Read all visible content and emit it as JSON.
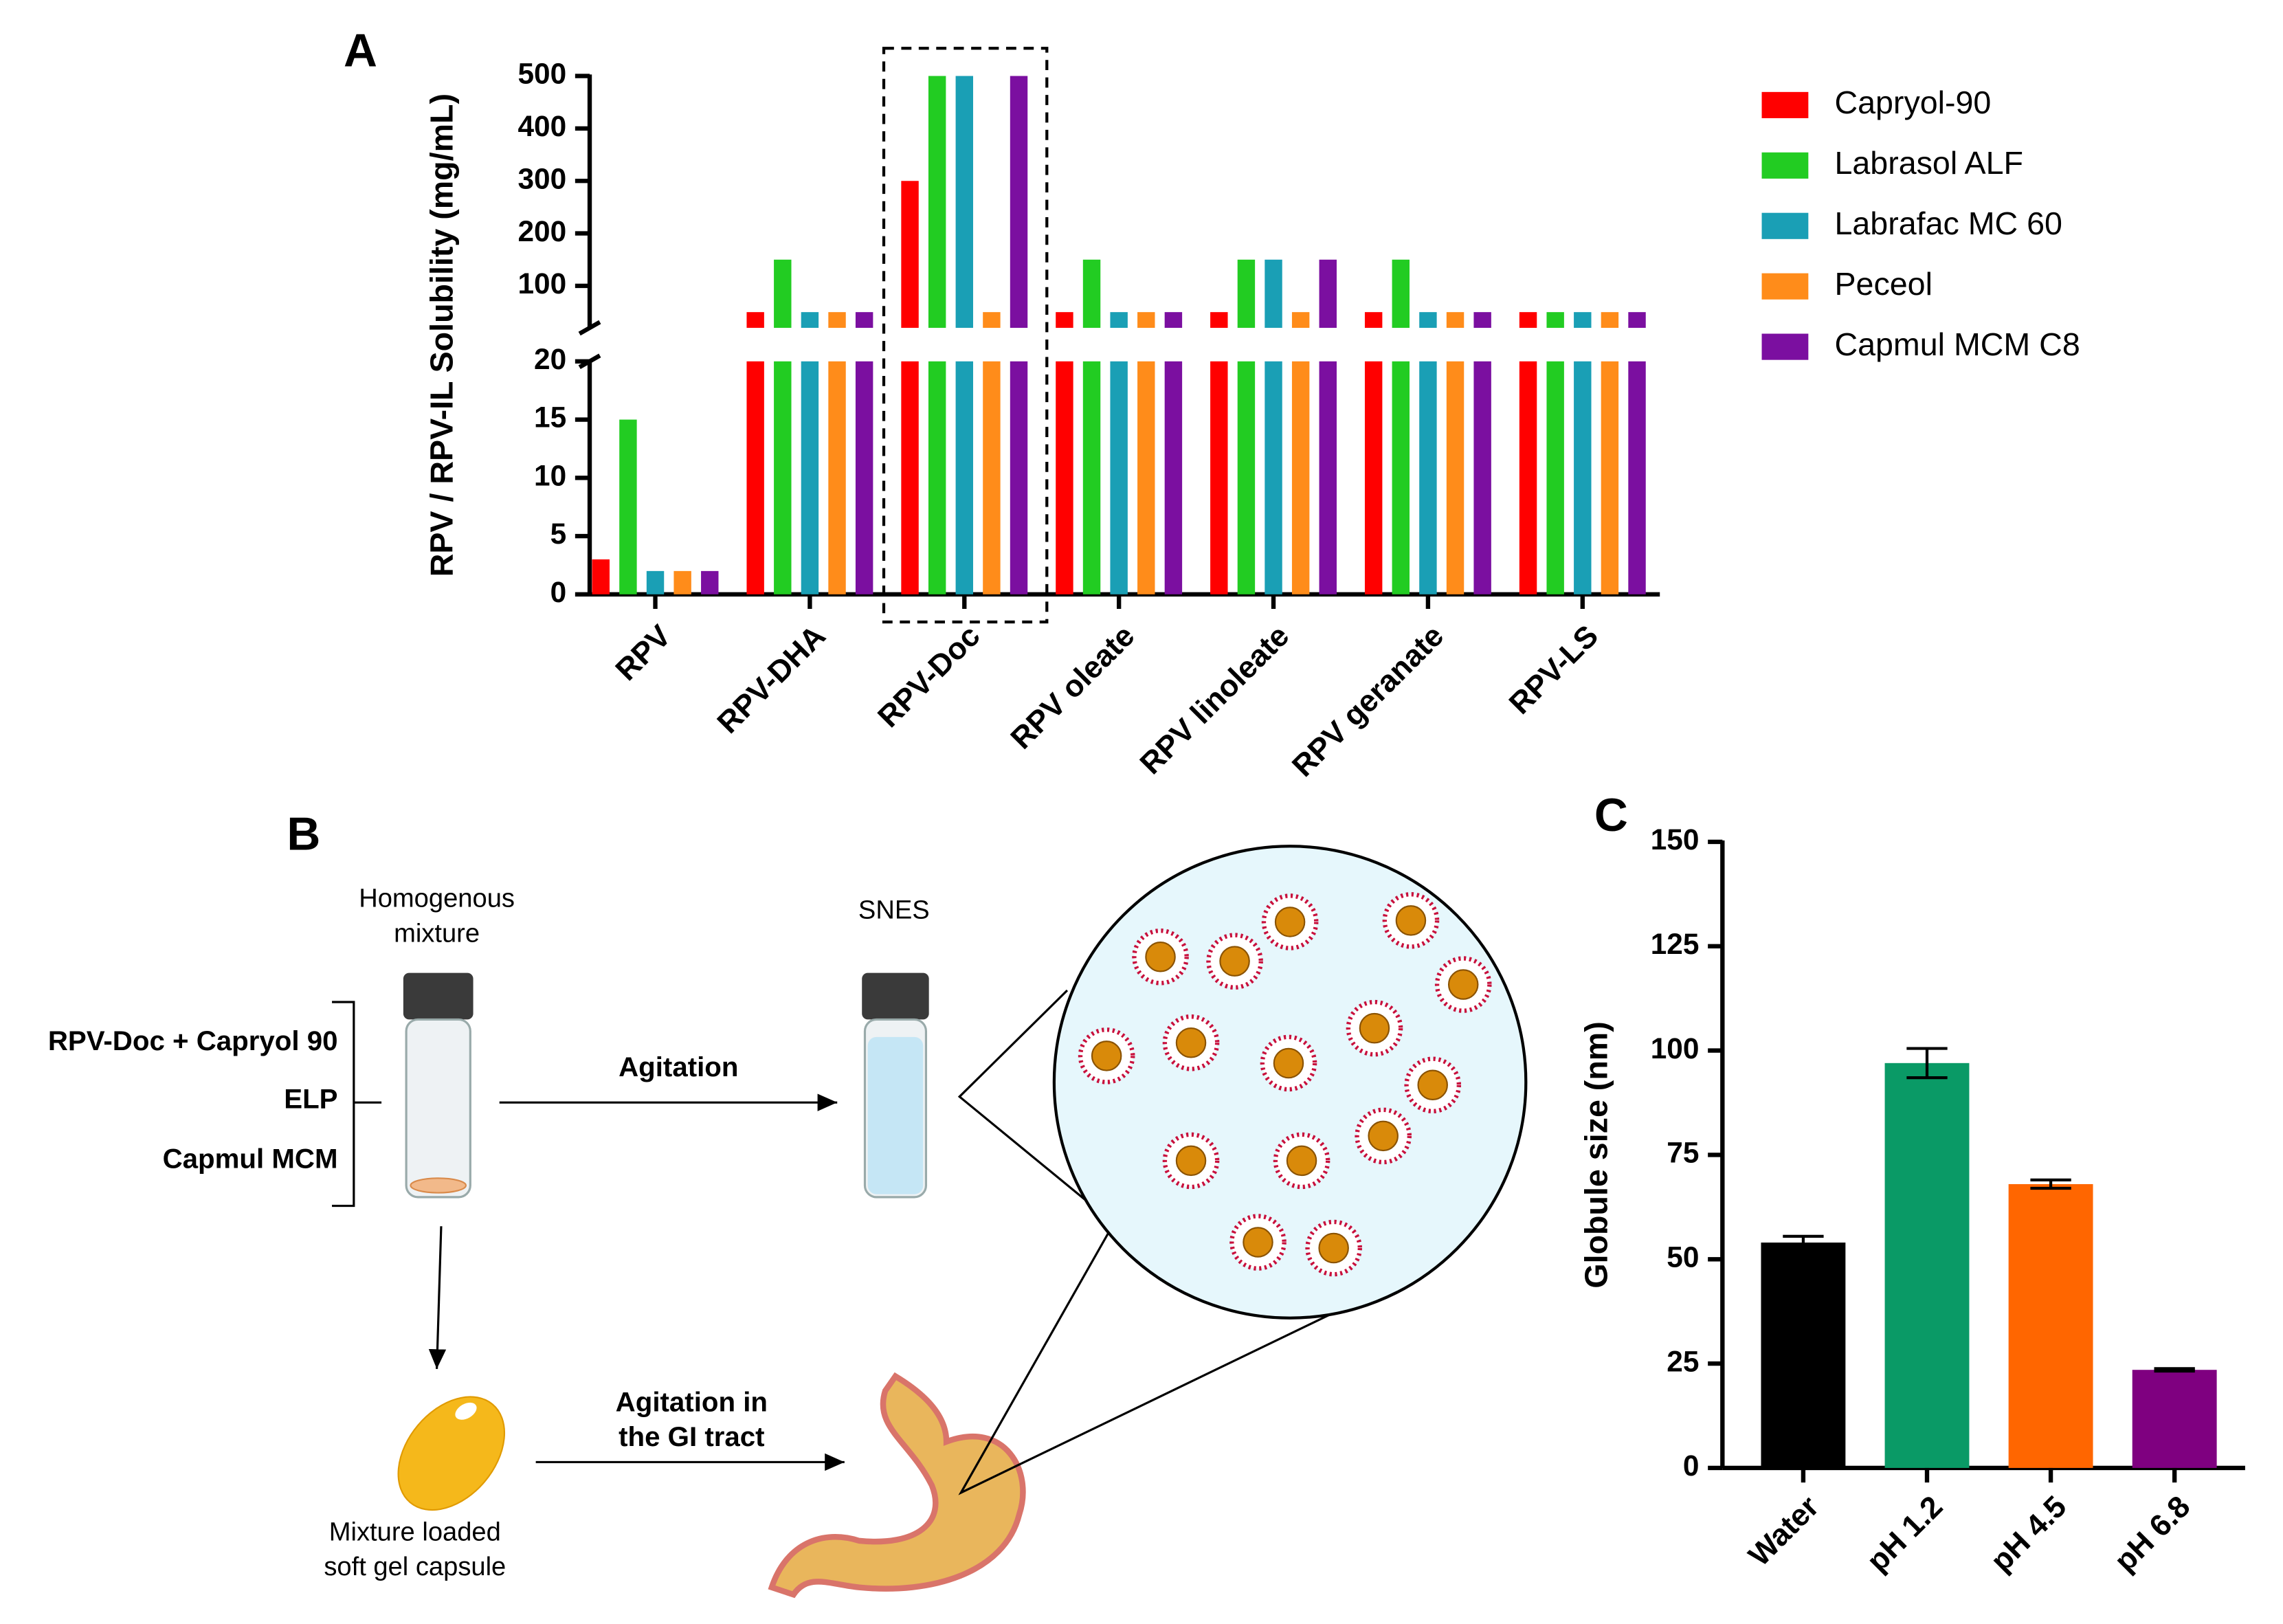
{
  "panels": [
    "A",
    "B",
    "C"
  ],
  "chart_data": [
    {
      "type": "bar",
      "y_label": "RPV / RPV-IL Solubility (mg/mL)",
      "categories": [
        "RPV",
        "RPV-DHA",
        "RPV-Doc",
        "RPV oleate",
        "RPV linoleate",
        "RPV geranate",
        "RPV-LS"
      ],
      "series": [
        {
          "name": "Capryol-90",
          "color": "#ff0000",
          "values": [
            3,
            50,
            300,
            50,
            50,
            50,
            50
          ]
        },
        {
          "name": "Labrasol ALF",
          "color": "#22cc22",
          "values": [
            15,
            150,
            500,
            150,
            150,
            150,
            50
          ]
        },
        {
          "name": "Labrafac MC 60",
          "color": "#1a9fb5",
          "values": [
            2,
            50,
            500,
            50,
            150,
            50,
            50
          ]
        },
        {
          "name": "Peceol",
          "color": "#ff8c1a",
          "values": [
            2,
            50,
            50,
            50,
            50,
            50,
            50
          ]
        },
        {
          "name": "Capmul MCM C8",
          "color": "#7b0fa0",
          "values": [
            2,
            50,
            500,
            50,
            150,
            50,
            50
          ]
        }
      ],
      "axis_break": {
        "lower": {
          "ylim": [
            0,
            20
          ],
          "yticks": [
            0,
            5,
            10,
            15,
            20
          ]
        },
        "upper": {
          "ylim": [
            20,
            500
          ],
          "yticks": [
            100,
            200,
            300,
            400,
            500
          ]
        }
      },
      "legend": "right"
    },
    {
      "type": "bar",
      "y_label": "Globule size (nm)",
      "categories": [
        "Water",
        "pH 1.2",
        "pH 4.5",
        "pH 6.8"
      ],
      "colors": [
        "#000000",
        "#0a9a66",
        "#ff6600",
        "#7f0080"
      ],
      "values": [
        54,
        97,
        68,
        23.5
      ],
      "errors": [
        1.5,
        3.5,
        1,
        0.3
      ],
      "ylim": [
        0,
        150
      ],
      "yticks": [
        0,
        25,
        50,
        75,
        100,
        125,
        150
      ]
    }
  ],
  "diagram": {
    "mixture_label": [
      "Homogenous",
      "mixture"
    ],
    "snes_label": "SNES",
    "components": [
      "RPV-Doc + Capryol 90",
      "ELP",
      "Capmul MCM"
    ],
    "agitation": "Agitation",
    "agitation_gi": [
      "Agitation in",
      "the GI tract"
    ],
    "capsule_label": [
      "Mixture loaded",
      "soft gel capsule"
    ]
  }
}
